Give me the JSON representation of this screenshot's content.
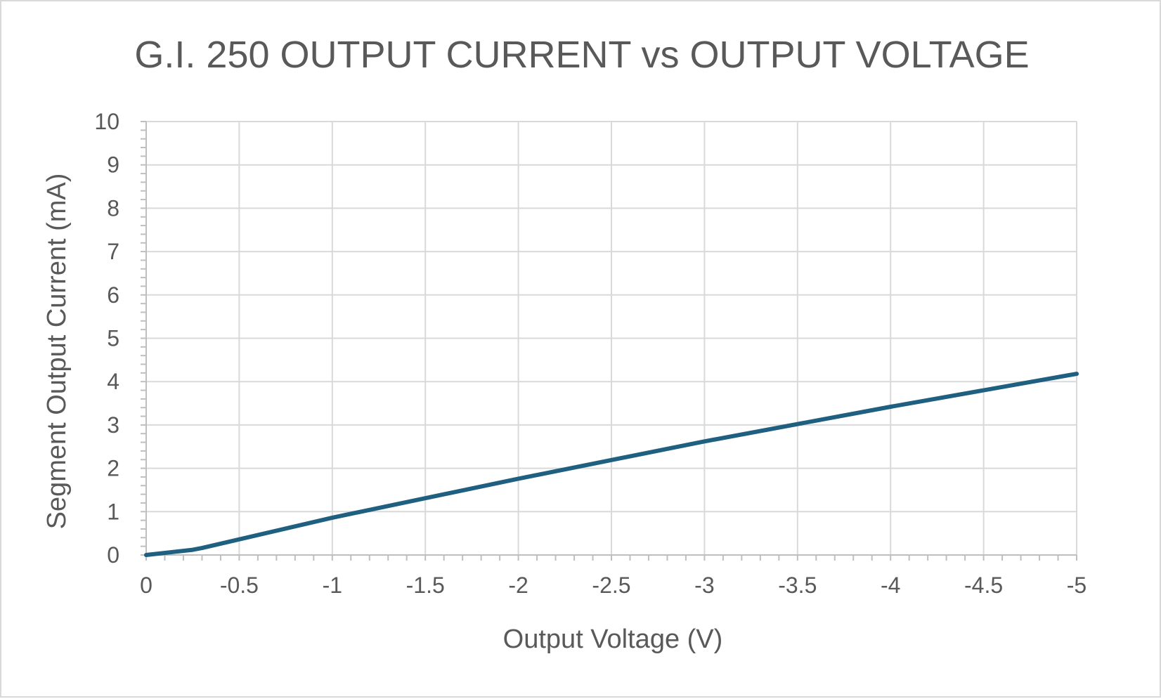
{
  "chart_data": {
    "type": "line",
    "title": "G.I. 250 OUTPUT CURRENT vs OUTPUT VOLTAGE",
    "xlabel": "Output Voltage (V)",
    "ylabel": "Segment Output Current (mA)",
    "xlim": [
      0,
      -5
    ],
    "ylim": [
      0,
      10
    ],
    "x_ticks": [
      0,
      -0.5,
      -1,
      -1.5,
      -2,
      -2.5,
      -3,
      -3.5,
      -4,
      -4.5,
      -5
    ],
    "x_tick_labels": [
      "0",
      "-0.5",
      "-1",
      "-1.5",
      "-2",
      "-2.5",
      "-3",
      "-3.5",
      "-4",
      "-4.5",
      "-5"
    ],
    "y_ticks": [
      0,
      1,
      2,
      3,
      4,
      5,
      6,
      7,
      8,
      9,
      10
    ],
    "y_tick_labels": [
      "0",
      "1",
      "2",
      "3",
      "4",
      "5",
      "6",
      "7",
      "8",
      "9",
      "10"
    ],
    "x_minor_step": -0.1,
    "y_minor_step": 0.2,
    "grid": true,
    "legend": "none",
    "series": [
      {
        "color": "#1f5f80",
        "x": [
          0,
          -0.25,
          -0.3,
          -1,
          -2,
          -3,
          -4,
          -5
        ],
        "y": [
          0,
          0.12,
          0.16,
          0.86,
          1.76,
          2.62,
          3.42,
          4.18
        ]
      }
    ]
  }
}
